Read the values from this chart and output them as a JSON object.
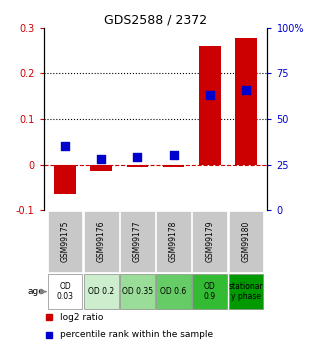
{
  "title": "GDS2588 / 2372",
  "samples": [
    "GSM99175",
    "GSM99176",
    "GSM99177",
    "GSM99178",
    "GSM99179",
    "GSM99180"
  ],
  "log2_ratio": [
    -0.065,
    -0.015,
    -0.005,
    -0.005,
    0.26,
    0.277
  ],
  "percentile_rank_pct": [
    35.0,
    28.0,
    29.0,
    30.0,
    63.0,
    66.0
  ],
  "age_labels": [
    "OD\n0.03",
    "OD 0.2",
    "OD 0.35",
    "OD 0.6",
    "OD\n0.9",
    "stationar\ny phase"
  ],
  "age_colors": [
    "#ffffff",
    "#cceecc",
    "#99dd99",
    "#66cc66",
    "#33bb33",
    "#009900"
  ],
  "bar_color": "#cc0000",
  "dot_color": "#0000cc",
  "ylim_left": [
    -0.1,
    0.3
  ],
  "ylim_right": [
    0,
    100
  ],
  "yticks_left": [
    -0.1,
    0.0,
    0.1,
    0.2,
    0.3
  ],
  "yticks_right": [
    0,
    25,
    50,
    75,
    100
  ],
  "ytick_labels_right": [
    "0",
    "25",
    "50",
    "75",
    "100%"
  ],
  "hlines_dotted": [
    0.1,
    0.2
  ],
  "background_color": "#ffffff",
  "legend_items": [
    {
      "label": "log2 ratio",
      "color": "#cc0000"
    },
    {
      "label": "percentile rank within the sample",
      "color": "#0000cc"
    }
  ],
  "bar_width": 0.6,
  "sample_bg_color": "#c8c8c8",
  "dot_size": 30
}
